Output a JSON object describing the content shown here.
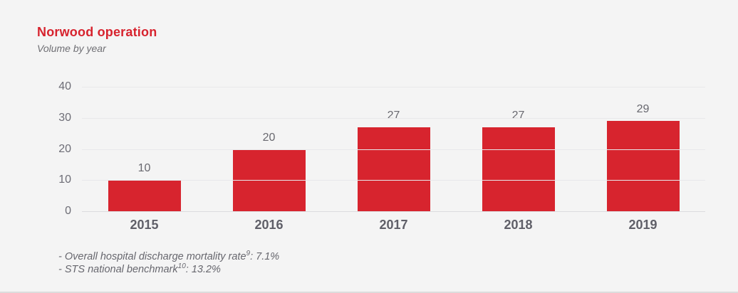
{
  "header": {
    "title": "Norwood operation",
    "subtitle": "Volume by year"
  },
  "chart_data": {
    "type": "bar",
    "title": "Norwood operation",
    "subtitle": "Volume by year",
    "categories": [
      "2015",
      "2016",
      "2017",
      "2018",
      "2019"
    ],
    "values": [
      10,
      20,
      27,
      27,
      29
    ],
    "xlabel": "",
    "ylabel": "",
    "ylim": [
      0,
      40
    ],
    "yticks": [
      0,
      10,
      20,
      30,
      40
    ],
    "grid": true,
    "legend": "none",
    "bar_color": "#d7242e",
    "value_labels_shown": true
  },
  "footnotes": {
    "lines": [
      {
        "before": "- Overall hospital discharge mortality rate",
        "sup": "9",
        "after": ": 7.1%"
      },
      {
        "before": "- STS national benchmark",
        "sup": "10",
        "after": ": 13.2%"
      }
    ]
  }
}
